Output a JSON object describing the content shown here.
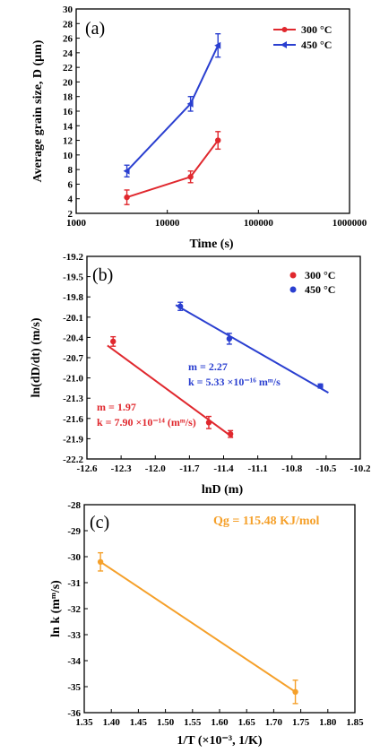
{
  "chart_data": [
    {
      "type": "line",
      "panel_label": "(a)",
      "xlabel": "Time (s)",
      "ylabel": "Average grain size, D (μm)",
      "x_scale": "log",
      "xlim": [
        1000,
        1000000
      ],
      "ylim": [
        2,
        30
      ],
      "x_ticks": [
        "1000",
        "10000",
        "100000",
        "1000000"
      ],
      "y_ticks": [
        "2",
        "4",
        "6",
        "8",
        "10",
        "12",
        "14",
        "16",
        "18",
        "20",
        "22",
        "24",
        "26",
        "28",
        "30"
      ],
      "legend_position": "top-right",
      "series": [
        {
          "name": "300 °C",
          "color": "#e0282e",
          "x": [
            3600,
            18000,
            36000
          ],
          "y": [
            4.2,
            7.0,
            12.0
          ],
          "err": [
            1.0,
            0.8,
            1.2
          ]
        },
        {
          "name": "450 °C",
          "color": "#2a3fd0",
          "x": [
            3600,
            18000,
            36000
          ],
          "y": [
            7.8,
            17.0,
            25.0
          ],
          "err": [
            0.8,
            1.0,
            1.6
          ]
        }
      ]
    },
    {
      "type": "scatter",
      "panel_label": "(b)",
      "xlabel": "lnD (m)",
      "ylabel": "ln(dD/dt) (m/s)",
      "xlim": [
        -12.6,
        -10.2
      ],
      "ylim": [
        -22.2,
        -19.2
      ],
      "x_ticks": [
        "-12.6",
        "-12.3",
        "-12.0",
        "-11.7",
        "-11.4",
        "-11.1",
        "-10.8",
        "-10.5",
        "-10.2"
      ],
      "y_ticks": [
        "-19.2",
        "-19.5",
        "-19.8",
        "-20.1",
        "-20.4",
        "-20.7",
        "-21.0",
        "-21.3",
        "-21.6",
        "-21.9",
        "-22.2"
      ],
      "legend_position": "top-right",
      "series": [
        {
          "name": "300 °C",
          "color": "#e0282e",
          "x": [
            -12.37,
            -11.53,
            -11.34
          ],
          "y": [
            -20.46,
            -21.66,
            -21.83
          ],
          "err": [
            0.07,
            0.09,
            0.05
          ],
          "fit_x": [
            -12.42,
            -11.32
          ],
          "fit_y": [
            -20.52,
            -21.88
          ]
        },
        {
          "name": "450 °C",
          "color": "#2a3fd0",
          "x": [
            -11.78,
            -11.35,
            -10.55
          ],
          "y": [
            -19.94,
            -20.42,
            -21.12
          ],
          "err": [
            0.06,
            0.08,
            0.03
          ],
          "fit_x": [
            -11.82,
            -10.48
          ],
          "fit_y": [
            -19.92,
            -21.22
          ]
        }
      ],
      "annotations": [
        {
          "text": "m = 2.27",
          "color": "#2a3fd0"
        },
        {
          "text": "k = 5.33 ×10⁻¹⁶ mᵐ/s",
          "color": "#2a3fd0"
        },
        {
          "text": "m = 1.97",
          "color": "#e0282e"
        },
        {
          "text": "k = 7.90 ×10⁻¹⁴ (mᵐ/s)",
          "color": "#e0282e"
        }
      ]
    },
    {
      "type": "line",
      "panel_label": "(c)",
      "xlabel": "1/T (×10⁻³, 1/K)",
      "ylabel": "ln k (mᵐ/s)",
      "xlim": [
        1.35,
        1.85
      ],
      "ylim": [
        -36,
        -28
      ],
      "x_ticks": [
        "1.35",
        "1.40",
        "1.45",
        "1.50",
        "1.55",
        "1.60",
        "1.65",
        "1.70",
        "1.75",
        "1.80",
        "1.85"
      ],
      "y_ticks": [
        "-28",
        "-29",
        "-30",
        "-31",
        "-32",
        "-33",
        "-34",
        "-35",
        "-36"
      ],
      "series": [
        {
          "name": "",
          "color": "#f5a02a",
          "x": [
            1.38,
            1.74
          ],
          "y": [
            -30.2,
            -35.2
          ],
          "err": [
            0.35,
            0.45
          ]
        }
      ],
      "annotations": [
        {
          "text": "Qg = 115.48 KJ/mol",
          "color": "#f5a02a"
        }
      ]
    }
  ]
}
